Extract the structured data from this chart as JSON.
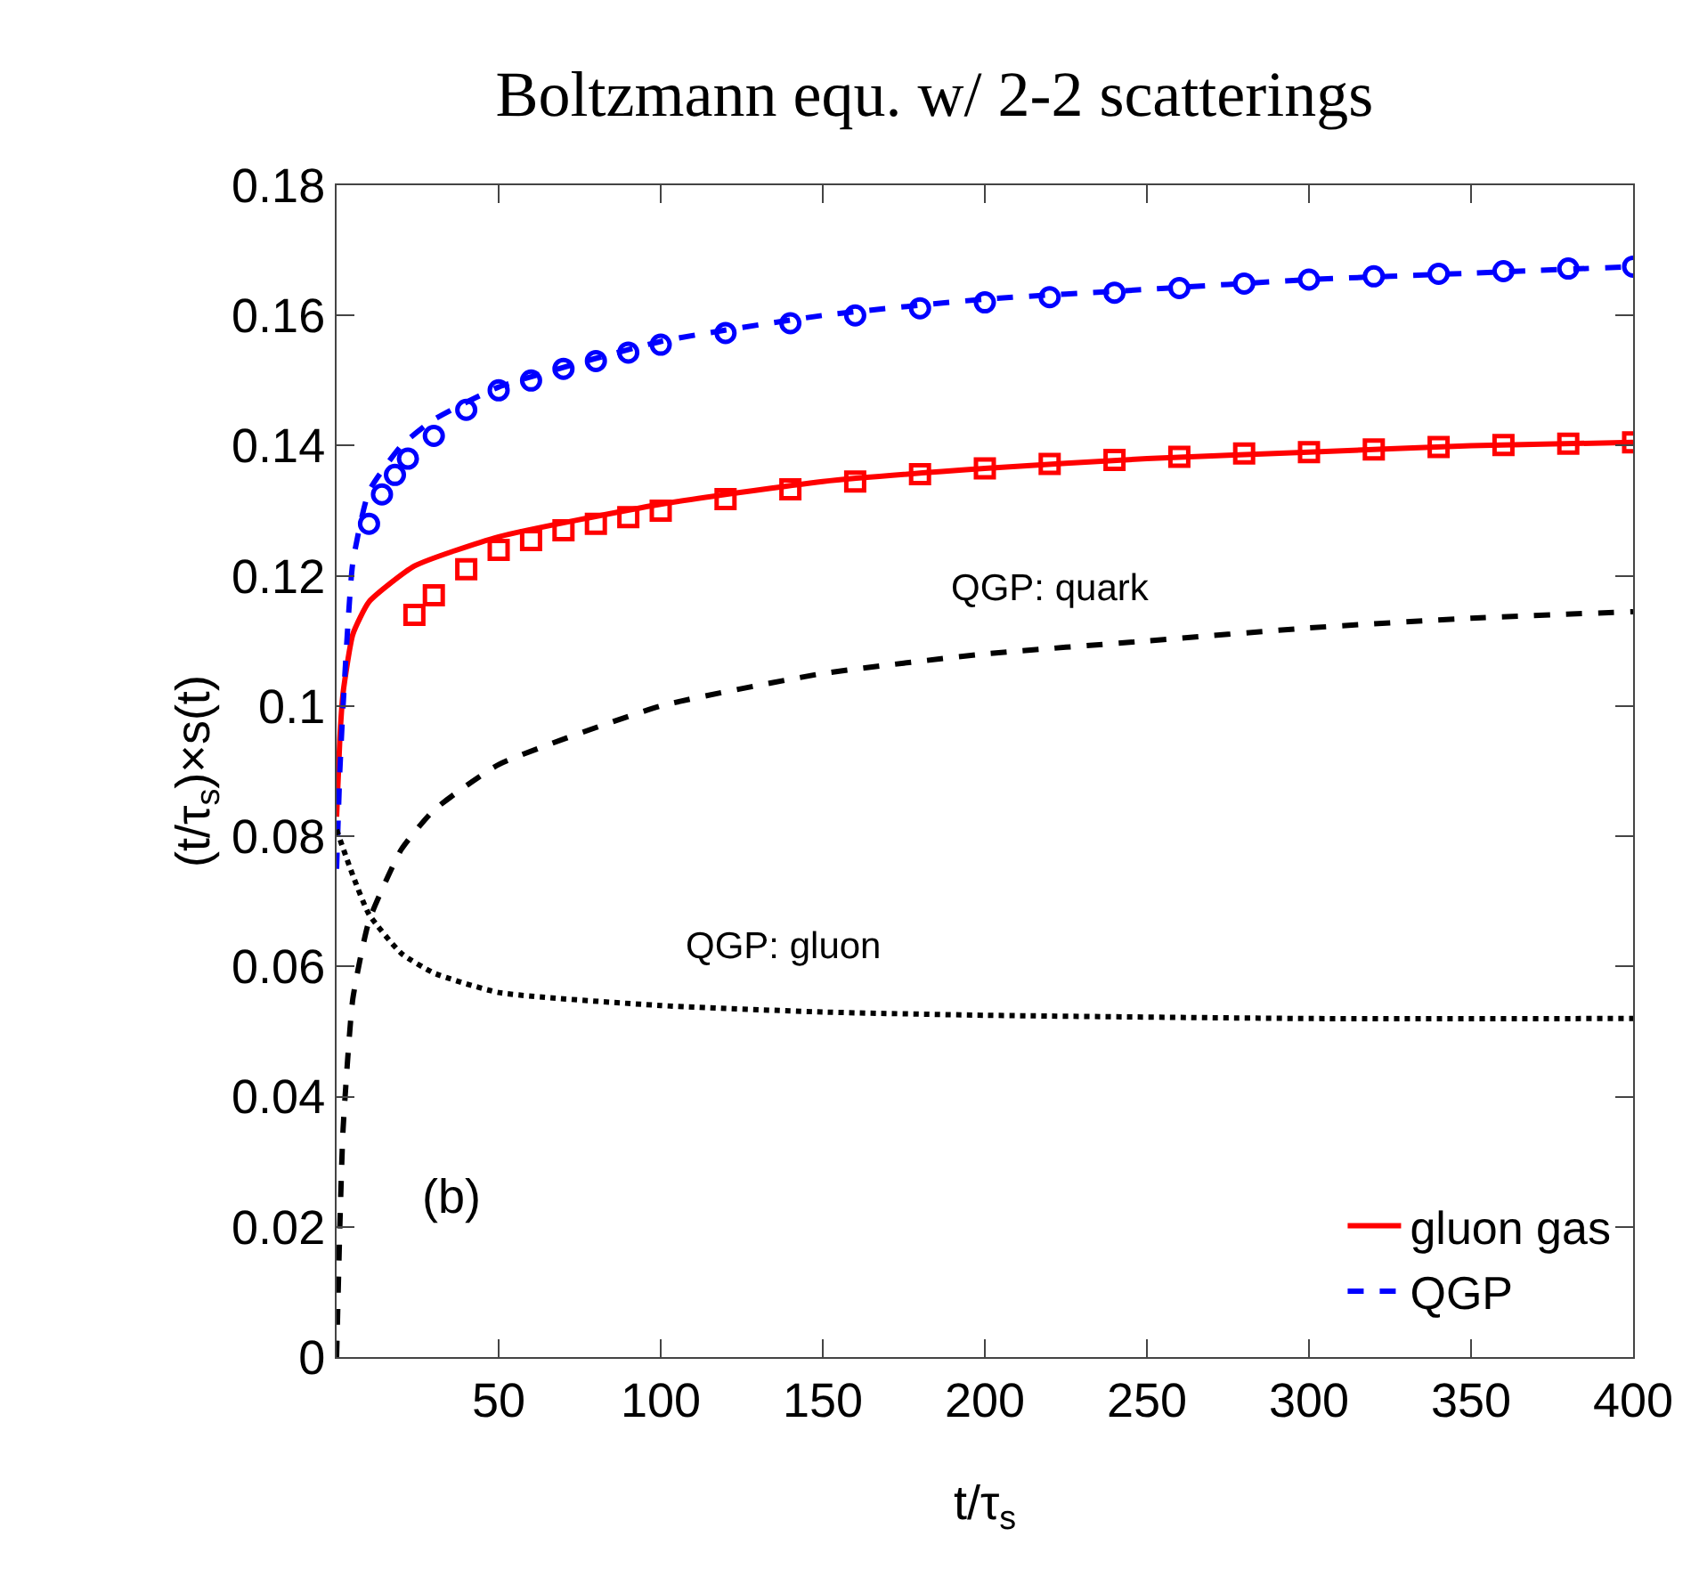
{
  "chart_data": {
    "type": "line",
    "title": "Boltzmann equ. w/ 2-2 scatterings",
    "xlabel": "t/τ$_{s}$",
    "ylabel": "(t/τ$_{s}$)×s(t)",
    "xlim": [
      0,
      400
    ],
    "xticks": [
      50,
      100,
      150,
      200,
      250,
      300,
      350,
      400
    ],
    "ylim": [
      0,
      0.18
    ],
    "yticks": [
      0,
      0.02,
      0.04,
      0.06,
      0.08,
      0.1,
      0.12,
      0.14,
      0.16,
      0.18
    ],
    "grid": false,
    "legend": "bottom right",
    "series": [
      {
        "name": "gluon gas",
        "line_style": "solid",
        "marker": "none",
        "color": "#ff0000",
        "x": [
          0,
          1,
          2,
          5,
          10,
          24,
          50,
          100,
          150,
          200,
          250,
          300,
          350,
          400
        ],
        "values": [
          0.083,
          0.095,
          0.102,
          0.111,
          0.116,
          0.1215,
          0.126,
          0.131,
          0.1345,
          0.1365,
          0.138,
          0.139,
          0.14,
          0.1405
        ]
      },
      {
        "name": "QGP",
        "line_style": "dashed",
        "marker": "none",
        "color": "#0000ff",
        "x": [
          0,
          1,
          2,
          5,
          10,
          20,
          30,
          50,
          100,
          150,
          200,
          250,
          300,
          350,
          400
        ],
        "values": [
          0.075,
          0.09,
          0.1,
          0.122,
          0.133,
          0.14,
          0.144,
          0.149,
          0.156,
          0.16,
          0.1625,
          0.164,
          0.1655,
          0.1665,
          0.1675
        ]
      },
      {
        "type": "scatter",
        "marker": "square",
        "color": "#ff0000",
        "x": [
          24,
          30,
          40,
          50,
          60,
          70,
          80,
          90,
          100,
          120,
          140,
          160,
          180,
          200,
          220,
          240,
          260,
          280,
          300,
          320,
          340,
          360,
          380,
          400
        ],
        "values": [
          0.114,
          0.117,
          0.121,
          0.124,
          0.1255,
          0.127,
          0.128,
          0.129,
          0.13,
          0.1318,
          0.1333,
          0.1345,
          0.1356,
          0.1365,
          0.1372,
          0.1378,
          0.1383,
          0.1388,
          0.139,
          0.1394,
          0.1398,
          0.1401,
          0.1403,
          0.1405
        ]
      },
      {
        "type": "scatter",
        "marker": "circle",
        "color": "#0000ff",
        "x": [
          10,
          14,
          18,
          22,
          30,
          40,
          50,
          60,
          70,
          80,
          90,
          100,
          120,
          140,
          160,
          180,
          200,
          220,
          240,
          260,
          280,
          300,
          320,
          340,
          360,
          380,
          400
        ],
        "values": [
          0.128,
          0.1325,
          0.1355,
          0.138,
          0.1415,
          0.1455,
          0.1485,
          0.15,
          0.1518,
          0.153,
          0.1543,
          0.1555,
          0.1573,
          0.1588,
          0.16,
          0.1611,
          0.162,
          0.1628,
          0.1635,
          0.1642,
          0.1649,
          0.1655,
          0.166,
          0.1664,
          0.1668,
          0.1672,
          0.1675
        ]
      },
      {
        "line_style": "dashed",
        "marker": "none",
        "color": "#000000",
        "x": [
          0,
          1,
          2,
          5,
          10,
          20,
          30,
          50,
          100,
          150,
          200,
          250,
          300,
          350,
          400
        ],
        "values": [
          0,
          0.02,
          0.035,
          0.055,
          0.067,
          0.078,
          0.084,
          0.091,
          0.1,
          0.105,
          0.108,
          0.11,
          0.112,
          0.1135,
          0.1145
        ]
      },
      {
        "line_style": "dotted",
        "marker": "none",
        "color": "#000000",
        "x": [
          0,
          5,
          10,
          20,
          30,
          50,
          100,
          150,
          200,
          300,
          400
        ],
        "values": [
          0.081,
          0.074,
          0.068,
          0.062,
          0.059,
          0.056,
          0.054,
          0.053,
          0.0525,
          0.052,
          0.052
        ]
      }
    ],
    "annotations": [
      "QGP: quark",
      "QGP: gluon",
      "(b)"
    ]
  }
}
